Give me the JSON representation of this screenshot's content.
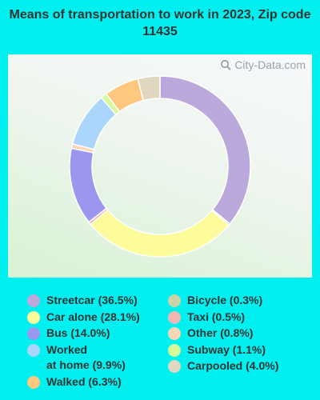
{
  "title": "Means of transportation to work in 2023, Zip code 11435",
  "watermark": "City-Data.com",
  "chart_data": {
    "type": "pie",
    "donut": true,
    "slices": [
      {
        "label": "Streetcar (36.5%)",
        "value": 36.5,
        "color": "#bba9dc"
      },
      {
        "label": "Bicycle (0.3%)",
        "value": 0.3,
        "color": "#c9d4a8"
      },
      {
        "label": "Car alone (28.1%)",
        "value": 28.1,
        "color": "#fdfc9a"
      },
      {
        "label": "Taxi (0.5%)",
        "value": 0.5,
        "color": "#f2b7b2"
      },
      {
        "label": "Bus (14.0%)",
        "value": 14.0,
        "color": "#9c97ee"
      },
      {
        "label": "Other (0.8%)",
        "value": 0.8,
        "color": "#fbd6b6"
      },
      {
        "label": "Worked\nat home (9.9%)",
        "value": 9.9,
        "color": "#abd6fb"
      },
      {
        "label": "Subway (1.1%)",
        "value": 1.1,
        "color": "#d6f99a"
      },
      {
        "label": "Walked (6.3%)",
        "value": 6.3,
        "color": "#fec87e"
      },
      {
        "label": "Carpooled (4.0%)",
        "value": 4.0,
        "color": "#dfd8bf"
      }
    ],
    "legend_left": [
      0,
      2,
      4,
      6,
      8
    ],
    "legend_right": [
      1,
      3,
      5,
      7,
      9
    ]
  }
}
